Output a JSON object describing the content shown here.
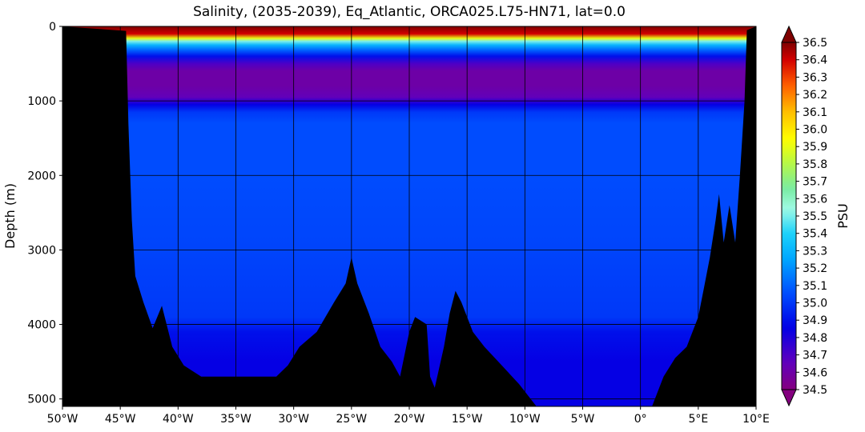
{
  "chart_data": {
    "type": "heatmap",
    "title": "Salinity, (2035-2039), Eq_Atlantic, ORCA025.L75-HN71, lat=0.0",
    "ylabel": "Depth (m)",
    "xlabel": "",
    "colorbar_label": "PSU",
    "xlim": [
      -50,
      10
    ],
    "ylim": [
      5100,
      0
    ],
    "x_ticks": [
      {
        "value": -50,
        "label": "50°W"
      },
      {
        "value": -45,
        "label": "45°W"
      },
      {
        "value": -40,
        "label": "40°W"
      },
      {
        "value": -35,
        "label": "35°W"
      },
      {
        "value": -30,
        "label": "30°W"
      },
      {
        "value": -25,
        "label": "25°W"
      },
      {
        "value": -20,
        "label": "20°W"
      },
      {
        "value": -15,
        "label": "15°W"
      },
      {
        "value": -10,
        "label": "10°W"
      },
      {
        "value": -5,
        "label": "5°W"
      },
      {
        "value": 0,
        "label": "0°"
      },
      {
        "value": 5,
        "label": "5°E"
      },
      {
        "value": 10,
        "label": "10°E"
      }
    ],
    "y_ticks": [
      {
        "value": 0,
        "label": "0"
      },
      {
        "value": 1000,
        "label": "1000"
      },
      {
        "value": 2000,
        "label": "2000"
      },
      {
        "value": 3000,
        "label": "3000"
      },
      {
        "value": 4000,
        "label": "4000"
      },
      {
        "value": 5000,
        "label": "5000"
      }
    ],
    "grid": true,
    "colorbar": {
      "min": 34.5,
      "max": 36.5,
      "extend": "both",
      "ticks": [
        "34.5",
        "34.6",
        "34.7",
        "34.8",
        "34.9",
        "35.0",
        "35.1",
        "35.2",
        "35.3",
        "35.4",
        "35.5",
        "35.6",
        "35.7",
        "35.8",
        "35.9",
        "36.0",
        "36.1",
        "36.2",
        "36.3",
        "36.4",
        "36.5"
      ]
    },
    "salinity_profile": [
      {
        "depth": 0,
        "psu": 36.5
      },
      {
        "depth": 100,
        "psu": 36.4
      },
      {
        "depth": 160,
        "psu": 35.9
      },
      {
        "depth": 200,
        "psu": 35.5
      },
      {
        "depth": 250,
        "psu": 35.3
      },
      {
        "depth": 320,
        "psu": 35.1
      },
      {
        "depth": 400,
        "psu": 34.9
      },
      {
        "depth": 500,
        "psu": 34.7
      },
      {
        "depth": 600,
        "psu": 34.6
      },
      {
        "depth": 800,
        "psu": 34.6
      },
      {
        "depth": 950,
        "psu": 34.65
      },
      {
        "depth": 1050,
        "psu": 34.85
      },
      {
        "depth": 1150,
        "psu": 35.0
      },
      {
        "depth": 1300,
        "psu": 35.05
      },
      {
        "depth": 2000,
        "psu": 35.05
      },
      {
        "depth": 3000,
        "psu": 35.03
      },
      {
        "depth": 3900,
        "psu": 35.0
      },
      {
        "depth": 4100,
        "psu": 34.9
      },
      {
        "depth": 4500,
        "psu": 34.85
      },
      {
        "depth": 5100,
        "psu": 34.85
      }
    ],
    "bathymetry": [
      {
        "lon": -50,
        "depth": 0
      },
      {
        "lon": -44.5,
        "depth": 60
      },
      {
        "lon": -44.3,
        "depth": 1300
      },
      {
        "lon": -44.0,
        "depth": 2600
      },
      {
        "lon": -43.7,
        "depth": 3350
      },
      {
        "lon": -43.0,
        "depth": 3700
      },
      {
        "lon": -42.2,
        "depth": 4050
      },
      {
        "lon": -41.4,
        "depth": 3750
      },
      {
        "lon": -40.5,
        "depth": 4300
      },
      {
        "lon": -39.5,
        "depth": 4550
      },
      {
        "lon": -38.0,
        "depth": 4700
      },
      {
        "lon": -31.5,
        "depth": 4700
      },
      {
        "lon": -30.5,
        "depth": 4550
      },
      {
        "lon": -29.5,
        "depth": 4300
      },
      {
        "lon": -28.0,
        "depth": 4100
      },
      {
        "lon": -26.5,
        "depth": 3700
      },
      {
        "lon": -25.5,
        "depth": 3450
      },
      {
        "lon": -25.0,
        "depth": 3100
      },
      {
        "lon": -24.5,
        "depth": 3450
      },
      {
        "lon": -23.5,
        "depth": 3850
      },
      {
        "lon": -22.5,
        "depth": 4300
      },
      {
        "lon": -21.5,
        "depth": 4500
      },
      {
        "lon": -20.8,
        "depth": 4700
      },
      {
        "lon": -20.0,
        "depth": 4100
      },
      {
        "lon": -19.5,
        "depth": 3900
      },
      {
        "lon": -18.5,
        "depth": 4000
      },
      {
        "lon": -18.2,
        "depth": 4700
      },
      {
        "lon": -17.8,
        "depth": 4850
      },
      {
        "lon": -17.0,
        "depth": 4300
      },
      {
        "lon": -16.5,
        "depth": 3850
      },
      {
        "lon": -16.0,
        "depth": 3550
      },
      {
        "lon": -15.5,
        "depth": 3700
      },
      {
        "lon": -14.5,
        "depth": 4100
      },
      {
        "lon": -13.5,
        "depth": 4300
      },
      {
        "lon": -12.0,
        "depth": 4550
      },
      {
        "lon": -10.5,
        "depth": 4800
      },
      {
        "lon": -9.0,
        "depth": 5100
      },
      {
        "lon": 1.0,
        "depth": 5100
      },
      {
        "lon": 2.0,
        "depth": 4700
      },
      {
        "lon": 3.0,
        "depth": 4450
      },
      {
        "lon": 4.0,
        "depth": 4300
      },
      {
        "lon": 5.0,
        "depth": 3900
      },
      {
        "lon": 5.5,
        "depth": 3500
      },
      {
        "lon": 6.0,
        "depth": 3100
      },
      {
        "lon": 6.5,
        "depth": 2600
      },
      {
        "lon": 6.8,
        "depth": 2250
      },
      {
        "lon": 7.2,
        "depth": 2900
      },
      {
        "lon": 7.7,
        "depth": 2400
      },
      {
        "lon": 8.2,
        "depth": 2900
      },
      {
        "lon": 8.6,
        "depth": 2000
      },
      {
        "lon": 9.0,
        "depth": 1000
      },
      {
        "lon": 9.2,
        "depth": 50
      },
      {
        "lon": 10.0,
        "depth": 0
      }
    ]
  }
}
